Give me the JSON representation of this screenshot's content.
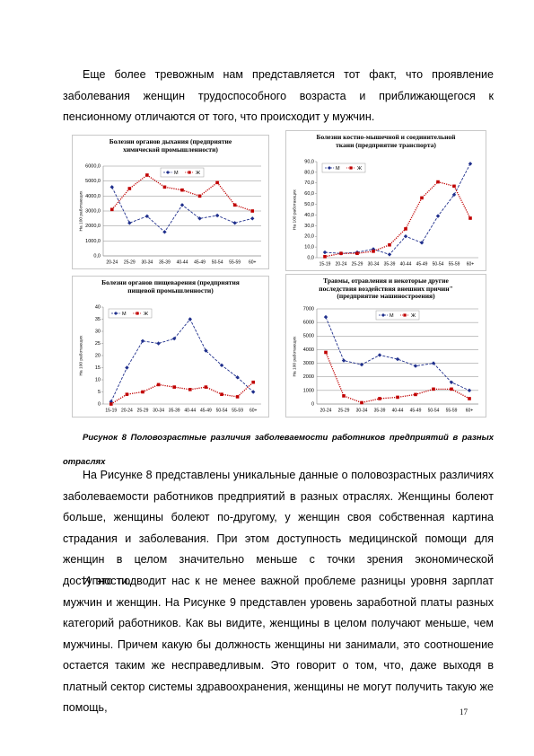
{
  "paragraphs": [
    "Еще более тревожным нам представляется тот факт, что проявление заболевания женщин трудоспособного возраста и приближающегося к пенсионному отличаются от того, что происходит у мужчин.",
    "На Рисунке 8 представлены уникальные данные о половозрастных различиях заболеваемости работников предприятий в разных отраслях. Женщины болеют больше, женщины болеют по-другому, у женщин своя собственная картина страдания и заболевания. При этом доступность медицинской помощи для женщин в целом значительно меньше с точки зрения экономической доступности.",
    "И это подводит нас к не менее важной проблеме разницы уровня зарплат мужчин и женщин. На Рисунке 9 представлен уровень заработной платы разных категорий работников. Как вы видите, женщины в целом получают меньше, чем мужчины. Причем какую бы должность женщины ни занимали, это соотношение остается таким же несправедливым. Это говорит о том, что, даже выходя в платный сектор системы здравоохранения, женщины не могут получить такую же помощь,"
  ],
  "caption": "Рисунок 8 Половозрастные различия заболеваемости работников предприятий в разных отраслях",
  "page_number": "17",
  "chart_data": [
    {
      "type": "line",
      "title": "Болезни органов дыхания (предприятие химической промышленности)",
      "y_label": "На 100 работающих",
      "categories": [
        "20-24",
        "25-29",
        "30-34",
        "35-39",
        "40-44",
        "45-49",
        "50-54",
        "55-59",
        "60+"
      ],
      "series": [
        {
          "name": "М",
          "color": "#1f2f8c",
          "values": [
            4600,
            2200,
            2650,
            1600,
            3400,
            2500,
            2700,
            2200,
            2500
          ]
        },
        {
          "name": "Ж",
          "color": "#c00000",
          "values": [
            3100,
            4500,
            5400,
            4600,
            4400,
            4000,
            4900,
            3400,
            3000
          ]
        }
      ],
      "ylim": [
        0,
        6000
      ],
      "yticks": [
        {
          "value": 0,
          "label": "0,0"
        },
        {
          "value": 1000,
          "label": "1000,0"
        },
        {
          "value": 2000,
          "label": "2000,0"
        },
        {
          "value": 3000,
          "label": "3000,0"
        },
        {
          "value": 4000,
          "label": "4000,0"
        },
        {
          "value": 5000,
          "label": "5000,0"
        },
        {
          "value": 6000,
          "label": "6000,0"
        }
      ],
      "grid": true,
      "legend": "top"
    },
    {
      "type": "line",
      "title": "Болезни костно-мышечной и соединительной ткани (предприятие транспорта)",
      "y_label": "На 100 работающих",
      "categories": [
        "15-19",
        "20-24",
        "25-29",
        "30-34",
        "35-39",
        "40-44",
        "45-49",
        "50-54",
        "55-59",
        "60+"
      ],
      "series": [
        {
          "name": "М",
          "color": "#1f2f8c",
          "values": [
            5,
            4,
            5,
            8,
            3,
            20,
            14,
            39,
            59,
            88
          ]
        },
        {
          "name": "Ж",
          "color": "#c00000",
          "values": [
            1,
            4,
            4,
            6,
            12,
            27,
            56,
            71,
            67,
            37
          ]
        }
      ],
      "ylim": [
        0,
        90
      ],
      "yticks": [
        {
          "value": 0,
          "label": "0,0"
        },
        {
          "value": 10,
          "label": "10,0"
        },
        {
          "value": 20,
          "label": "20,0"
        },
        {
          "value": 30,
          "label": "30,0"
        },
        {
          "value": 40,
          "label": "40,0"
        },
        {
          "value": 50,
          "label": "50,0"
        },
        {
          "value": 60,
          "label": "60,0"
        },
        {
          "value": 70,
          "label": "70,0"
        },
        {
          "value": 80,
          "label": "80,0"
        },
        {
          "value": 90,
          "label": "90,0"
        }
      ],
      "grid": false,
      "legend": "top-left"
    },
    {
      "type": "line",
      "title": "Болезни органов пищеварения (предприятия пищевой промышленности)",
      "y_label": "На 100 работающих",
      "categories": [
        "15-19",
        "20-24",
        "25-29",
        "30-34",
        "35-39",
        "40-44",
        "45-49",
        "50-54",
        "55-59",
        "60+"
      ],
      "series": [
        {
          "name": "М",
          "color": "#1f2f8c",
          "values": [
            1,
            15,
            26,
            25,
            27,
            35,
            22,
            16,
            11,
            5
          ]
        },
        {
          "name": "Ж",
          "color": "#c00000",
          "values": [
            0,
            4,
            5,
            8,
            7,
            6,
            7,
            4,
            3,
            9
          ]
        }
      ],
      "ylim": [
        0,
        40
      ],
      "yticks": [
        0,
        5,
        10,
        15,
        20,
        25,
        30,
        35,
        40
      ],
      "grid": false,
      "legend": "top-left"
    },
    {
      "type": "line",
      "title": "Травмы, отравления и некоторые другие последствия воздействия внешних причин\" (предприятие машиностроения)",
      "y_label": "На 100 работающих",
      "categories": [
        "20-24",
        "25-29",
        "30-34",
        "35-39",
        "40-44",
        "45-49",
        "50-54",
        "55-59",
        "60+"
      ],
      "series": [
        {
          "name": "М",
          "color": "#1f2f8c",
          "values": [
            6400,
            3200,
            2900,
            3600,
            3300,
            2800,
            3000,
            1600,
            1000
          ]
        },
        {
          "name": "Ж",
          "color": "#c00000",
          "values": [
            3800,
            600,
            100,
            400,
            500,
            700,
            1100,
            1100,
            400
          ]
        }
      ],
      "ylim": [
        0,
        7000
      ],
      "yticks": [
        0,
        1000,
        2000,
        3000,
        4000,
        5000,
        6000,
        7000
      ],
      "grid": true,
      "legend": "top"
    }
  ]
}
